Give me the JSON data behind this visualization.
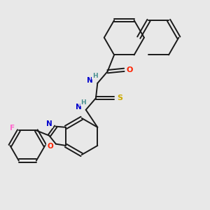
{
  "background_color": "#e8e8e8",
  "bond_color": "#1a1a1a",
  "atom_colors": {
    "N": "#0000cc",
    "O": "#ff2200",
    "S": "#ccaa00",
    "F": "#ff66cc",
    "NH": "#4a9090",
    "C": "#1a1a1a"
  }
}
